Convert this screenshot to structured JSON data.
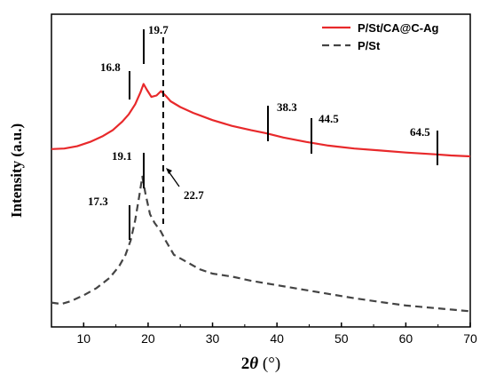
{
  "chart_data": {
    "type": "line",
    "xlabel_main": "2",
    "xlabel_theta": "θ",
    "xlabel_unit": " (°)",
    "ylabel": "Intensity (a.u.)",
    "xlim": [
      5,
      70
    ],
    "xticks": [
      "10",
      "20",
      "30",
      "40",
      "50",
      "60",
      "70"
    ],
    "grid": false,
    "legend_position": "top-right",
    "series": [
      {
        "name": "P/St/CA@C-Ag",
        "color": "#e8292b",
        "style": "solid",
        "x": [
          5,
          7,
          9,
          11,
          13,
          14.5,
          16,
          17,
          18,
          18.8,
          19.3,
          19.8,
          20.5,
          21.3,
          22,
          22.7,
          23.5,
          25,
          27,
          30,
          33,
          36,
          38.3,
          41,
          44.5,
          48,
          52,
          56,
          60,
          64.5,
          67,
          70
        ],
        "y": [
          0.565,
          0.567,
          0.575,
          0.59,
          0.61,
          0.63,
          0.66,
          0.685,
          0.72,
          0.76,
          0.79,
          0.77,
          0.745,
          0.75,
          0.765,
          0.75,
          0.73,
          0.71,
          0.69,
          0.665,
          0.645,
          0.63,
          0.62,
          0.605,
          0.59,
          0.577,
          0.567,
          0.56,
          0.553,
          0.547,
          0.543,
          0.54
        ]
      },
      {
        "name": "P/St",
        "color": "#444444",
        "style": "dashed",
        "x": [
          5,
          6.5,
          8,
          10,
          12,
          14,
          15.5,
          16.5,
          17.3,
          18,
          18.6,
          19.1,
          19.6,
          20.3,
          21,
          22,
          22.7,
          24,
          26,
          28,
          30,
          33,
          36,
          40,
          44,
          48,
          52,
          56,
          60,
          65,
          70
        ],
        "y": [
          0.035,
          0.03,
          0.04,
          0.06,
          0.085,
          0.12,
          0.16,
          0.2,
          0.25,
          0.32,
          0.4,
          0.47,
          0.41,
          0.34,
          0.31,
          0.28,
          0.25,
          0.2,
          0.175,
          0.15,
          0.135,
          0.125,
          0.11,
          0.095,
          0.08,
          0.065,
          0.05,
          0.037,
          0.025,
          0.015,
          0.005
        ]
      }
    ],
    "annotations": {
      "a168": "16.8",
      "a197": "19.7",
      "a383": "38.3",
      "a445": "44.5",
      "a645": "64.5",
      "a191": "19.1",
      "a173": "17.3",
      "a227": "22.7"
    }
  }
}
